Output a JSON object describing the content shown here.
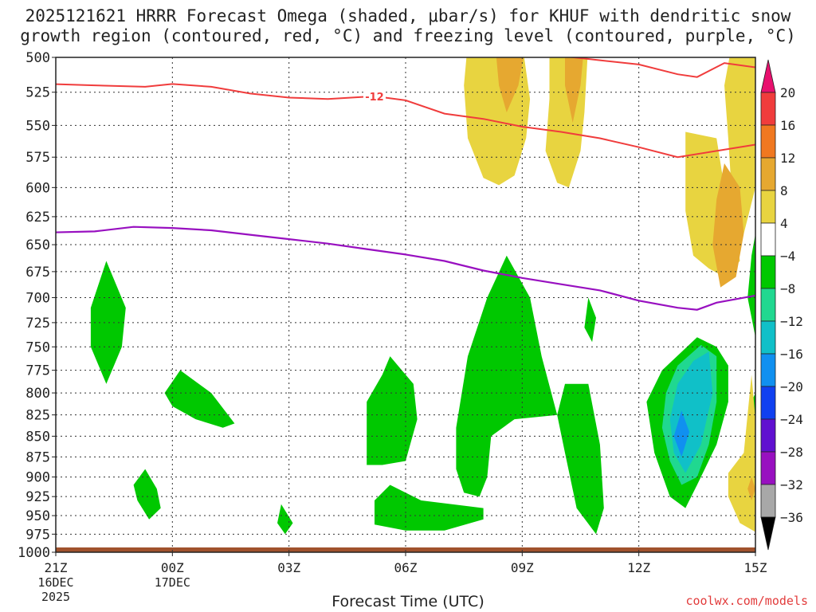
{
  "chart_data": {
    "type": "heatmap",
    "title_line1": "2025121621 HRRR Forecast Omega (shaded, μbar/s) for KHUF with dendritic snow",
    "title_line2": "growth region (contoured, red, °C) and freezing level (contoured, purple, °C)",
    "xlabel": "Forecast Time (UTC)",
    "credit": "coolwx.com/models",
    "y_axis": {
      "unit": "hPa",
      "range": [
        1000,
        500
      ],
      "ticks": [
        "500",
        "525",
        "550",
        "575",
        "600",
        "625",
        "650",
        "675",
        "700",
        "725",
        "750",
        "775",
        "800",
        "825",
        "850",
        "875",
        "900",
        "925",
        "950",
        "975",
        "1000"
      ]
    },
    "x_axis": {
      "range_hours": [
        0,
        18
      ],
      "ticks": [
        {
          "hour": 0,
          "label": "21Z",
          "sub1": "16DEC",
          "sub2": "2025"
        },
        {
          "hour": 3,
          "label": "00Z",
          "sub1": "17DEC",
          "sub2": ""
        },
        {
          "hour": 6,
          "label": "03Z",
          "sub1": "",
          "sub2": ""
        },
        {
          "hour": 9,
          "label": "06Z",
          "sub1": "",
          "sub2": ""
        },
        {
          "hour": 12,
          "label": "09Z",
          "sub1": "",
          "sub2": ""
        },
        {
          "hour": 15,
          "label": "12Z",
          "sub1": "",
          "sub2": ""
        },
        {
          "hour": 18,
          "label": "15Z",
          "sub1": "",
          "sub2": ""
        }
      ]
    },
    "colorbar": {
      "labels": [
        "20",
        "16",
        "12",
        "8",
        "4",
        "−4",
        "−8",
        "−12",
        "−16",
        "−20",
        "−24",
        "−28",
        "−32",
        "−36"
      ],
      "colors": [
        "#e8106e",
        "#f03c3c",
        "#f07820",
        "#e6a830",
        "#e8d440",
        "#ffffff",
        "#00c800",
        "#20d890",
        "#10c0c8",
        "#1090f0",
        "#1040f0",
        "#6010d0",
        "#9810c0",
        "#a8a8a8",
        "#000000"
      ]
    },
    "contours": {
      "red_label": "-12",
      "red_upper": [
        [
          -0.2,
          519
        ],
        [
          1,
          520
        ],
        [
          2.3,
          521
        ],
        [
          3,
          519
        ],
        [
          4,
          521
        ],
        [
          5,
          526
        ],
        [
          6,
          529
        ],
        [
          7,
          530
        ],
        [
          7.6,
          529
        ],
        [
          8.2,
          528
        ],
        [
          9,
          531
        ],
        [
          10,
          541
        ],
        [
          11,
          545
        ],
        [
          12,
          551
        ],
        [
          13,
          555
        ],
        [
          14,
          560
        ],
        [
          15,
          567
        ],
        [
          16,
          575
        ],
        [
          17,
          570
        ],
        [
          18,
          565
        ]
      ],
      "red_lower": [
        [
          11.8,
          496
        ],
        [
          13,
          499
        ],
        [
          14,
          502
        ],
        [
          15,
          505
        ],
        [
          16,
          512
        ],
        [
          16.5,
          514
        ],
        [
          17.2,
          504
        ],
        [
          18,
          507
        ]
      ],
      "purple": [
        [
          -0.2,
          639
        ],
        [
          1,
          638
        ],
        [
          2,
          634
        ],
        [
          3,
          635
        ],
        [
          4,
          637
        ],
        [
          5,
          641
        ],
        [
          6,
          645
        ],
        [
          7,
          649
        ],
        [
          8,
          654
        ],
        [
          9,
          659
        ],
        [
          10,
          665
        ],
        [
          11,
          674
        ],
        [
          12,
          681
        ],
        [
          13,
          687
        ],
        [
          14,
          693
        ],
        [
          15,
          703
        ],
        [
          16,
          710
        ],
        [
          16.5,
          712
        ],
        [
          17,
          705
        ],
        [
          18,
          698
        ]
      ]
    },
    "shaded_regions": [
      {
        "value_range": "-4 to -8",
        "color": "#00c800",
        "polygons": [
          [
            [
              1.3,
              665
            ],
            [
              1.8,
              710
            ],
            [
              1.7,
              750
            ],
            [
              1.3,
              790
            ],
            [
              0.9,
              750
            ],
            [
              0.9,
              710
            ]
          ],
          [
            [
              3.2,
              775
            ],
            [
              4,
              800
            ],
            [
              4.6,
              835
            ],
            [
              4.3,
              840
            ],
            [
              3.6,
              830
            ],
            [
              3,
              815
            ],
            [
              2.8,
              800
            ]
          ],
          [
            [
              2.3,
              890
            ],
            [
              2.6,
              915
            ],
            [
              2.7,
              940
            ],
            [
              2.4,
              955
            ],
            [
              2.1,
              930
            ],
            [
              2.0,
              910
            ]
          ],
          [
            [
              5.8,
              935
            ],
            [
              6.1,
              960
            ],
            [
              5.9,
              975
            ],
            [
              5.7,
              960
            ]
          ],
          [
            [
              8.6,
              760
            ],
            [
              9.2,
              790
            ],
            [
              9.3,
              830
            ],
            [
              9.0,
              880
            ],
            [
              8.4,
              885
            ],
            [
              8.0,
              885
            ],
            [
              8.0,
              810
            ],
            [
              8.4,
              780
            ]
          ],
          [
            [
              8.6,
              910
            ],
            [
              9.4,
              930
            ],
            [
              11.0,
              940
            ],
            [
              11.0,
              955
            ],
            [
              10.0,
              970
            ],
            [
              9.0,
              970
            ],
            [
              8.2,
              962
            ],
            [
              8.2,
              930
            ]
          ],
          [
            [
              11.6,
              660
            ],
            [
              12.2,
              700
            ],
            [
              12.5,
              760
            ],
            [
              12.9,
              825
            ],
            [
              11.8,
              830
            ],
            [
              11.2,
              850
            ],
            [
              11.1,
              900
            ],
            [
              10.9,
              925
            ],
            [
              10.5,
              920
            ],
            [
              10.3,
              890
            ],
            [
              10.3,
              840
            ],
            [
              10.6,
              760
            ],
            [
              11.1,
              700
            ]
          ],
          [
            [
              13.7,
              700
            ],
            [
              13.9,
              720
            ],
            [
              13.8,
              745
            ],
            [
              13.6,
              730
            ]
          ],
          [
            [
              13.1,
              790
            ],
            [
              13.7,
              790
            ],
            [
              14.0,
              860
            ],
            [
              14.1,
              940
            ],
            [
              13.9,
              975
            ],
            [
              13.4,
              940
            ],
            [
              13.1,
              870
            ],
            [
              12.9,
              825
            ]
          ],
          [
            [
              16.5,
              740
            ],
            [
              17.0,
              750
            ],
            [
              17.3,
              770
            ],
            [
              17.3,
              810
            ],
            [
              17.0,
              860
            ],
            [
              16.5,
              910
            ],
            [
              16.2,
              940
            ],
            [
              15.8,
              925
            ],
            [
              15.4,
              870
            ],
            [
              15.2,
              810
            ],
            [
              15.6,
              775
            ]
          ],
          [
            [
              18,
              640
            ],
            [
              18.2,
              645
            ],
            [
              18.2,
              760
            ],
            [
              18,
              740
            ],
            [
              17.8,
              700
            ],
            [
              17.9,
              660
            ]
          ],
          [
            [
              18.1,
              790
            ],
            [
              18.2,
              870
            ],
            [
              18.0,
              850
            ],
            [
              17.9,
              810
            ]
          ]
        ]
      },
      {
        "value_range": "-8 to -12",
        "color": "#20d890",
        "polygons": [
          [
            [
              16.6,
              748
            ],
            [
              17.0,
              760
            ],
            [
              17.0,
              810
            ],
            [
              16.8,
              860
            ],
            [
              16.5,
              900
            ],
            [
              16.1,
              910
            ],
            [
              15.8,
              880
            ],
            [
              15.6,
              840
            ],
            [
              15.7,
              800
            ],
            [
              16.0,
              770
            ]
          ]
        ]
      },
      {
        "value_range": "-12 to -16",
        "color": "#10c0c8",
        "polygons": [
          [
            [
              16.8,
              755
            ],
            [
              16.9,
              800
            ],
            [
              16.6,
              860
            ],
            [
              16.2,
              895
            ],
            [
              15.9,
              870
            ],
            [
              15.8,
              830
            ],
            [
              16.0,
              790
            ],
            [
              16.4,
              765
            ]
          ]
        ]
      },
      {
        "value_range": "-16 to -20",
        "color": "#1090f0",
        "polygons": [
          [
            [
              16.1,
              820
            ],
            [
              16.3,
              845
            ],
            [
              16.1,
              875
            ],
            [
              15.9,
              850
            ]
          ]
        ]
      },
      {
        "value_range": "4 to 8",
        "color": "#e8d440",
        "polygons": [
          [
            [
              10.6,
              490
            ],
            [
              12.0,
              490
            ],
            [
              12.2,
              530
            ],
            [
              12.1,
              560
            ],
            [
              11.8,
              590
            ],
            [
              11.4,
              598
            ],
            [
              11.0,
              592
            ],
            [
              10.6,
              560
            ],
            [
              10.5,
              520
            ]
          ],
          [
            [
              12.7,
              490
            ],
            [
              13.7,
              490
            ],
            [
              13.6,
              540
            ],
            [
              13.5,
              570
            ],
            [
              13.2,
              600
            ],
            [
              12.9,
              596
            ],
            [
              12.6,
              570
            ],
            [
              12.7,
              530
            ]
          ],
          [
            [
              16.2,
              555
            ],
            [
              17.0,
              560
            ],
            [
              17.2,
              600
            ],
            [
              17.5,
              640
            ],
            [
              17.6,
              665
            ],
            [
              17.2,
              680
            ],
            [
              16.8,
              672
            ],
            [
              16.4,
              660
            ],
            [
              16.2,
              620
            ],
            [
              16.2,
              590
            ]
          ],
          [
            [
              17.4,
              490
            ],
            [
              18,
              490
            ],
            [
              18.2,
              545
            ],
            [
              18.0,
              600
            ],
            [
              17.7,
              640
            ],
            [
              17.4,
              610
            ],
            [
              17.3,
              560
            ],
            [
              17.2,
              520
            ]
          ],
          [
            [
              17.9,
              780
            ],
            [
              18.0,
              830
            ],
            [
              18.5,
              880
            ],
            [
              18.7,
              930
            ],
            [
              18.5,
              965
            ],
            [
              18.1,
              975
            ],
            [
              17.6,
              960
            ],
            [
              17.3,
              925
            ],
            [
              17.3,
              895
            ],
            [
              17.7,
              870
            ]
          ]
        ]
      },
      {
        "value_range": "8 to 12",
        "color": "#e6a830",
        "polygons": [
          [
            [
              11.3,
              490
            ],
            [
              12.1,
              490
            ],
            [
              11.9,
              520
            ],
            [
              11.6,
              540
            ],
            [
              11.4,
              520
            ]
          ],
          [
            [
              13.1,
              490
            ],
            [
              13.6,
              490
            ],
            [
              13.5,
              520
            ],
            [
              13.3,
              548
            ],
            [
              13.1,
              520
            ]
          ],
          [
            [
              17.2,
              580
            ],
            [
              17.6,
              600
            ],
            [
              17.7,
              640
            ],
            [
              17.5,
              680
            ],
            [
              17.1,
              690
            ],
            [
              16.9,
              650
            ],
            [
              17.0,
              610
            ]
          ],
          [
            [
              18.0,
              490
            ],
            [
              18.3,
              498
            ],
            [
              18.2,
              510
            ],
            [
              18.0,
              505
            ]
          ],
          [
            [
              17.9,
              900
            ],
            [
              18.0,
              915
            ],
            [
              17.9,
              930
            ],
            [
              17.8,
              915
            ]
          ]
        ]
      }
    ]
  }
}
